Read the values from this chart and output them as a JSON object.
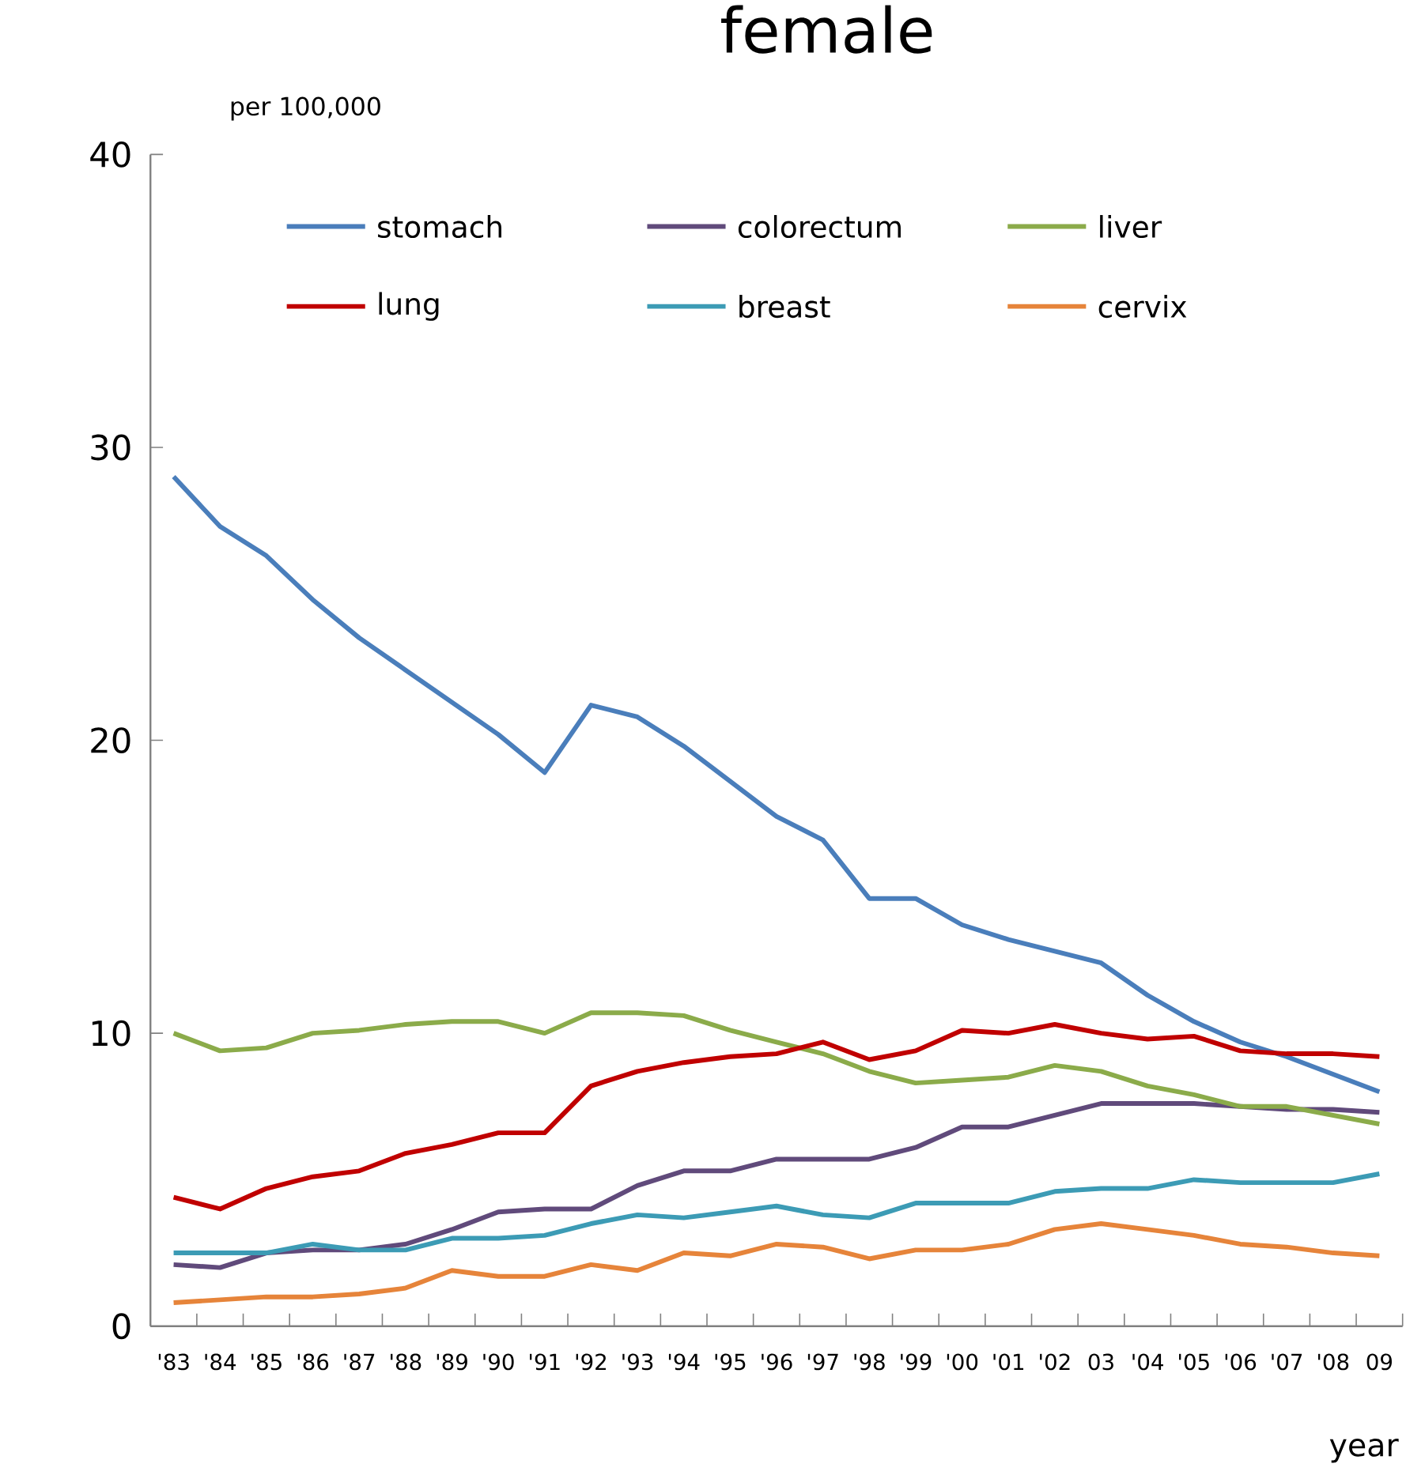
{
  "chart_data": {
    "type": "line",
    "title": "female",
    "ylabel": "per 100,000",
    "xlabel": "year",
    "categories": [
      "'83",
      "'84",
      "'85",
      "'86",
      "'87",
      "'88",
      "'89",
      "'90",
      "'91",
      "'92",
      "'93",
      "'94",
      "'95",
      "'96",
      "'97",
      "'98",
      "'99",
      "'00",
      "'01",
      "'02",
      "03",
      "'04",
      "'05",
      "'06",
      "'07",
      "'08",
      "09"
    ],
    "ylim": [
      0,
      40
    ],
    "yticks": [
      0,
      10,
      20,
      30,
      40
    ],
    "grid": false,
    "legend": "top",
    "marker": "none",
    "line_style": "solid",
    "series": [
      {
        "name": "stomach",
        "color": "#4a7ebb",
        "values": [
          29.0,
          27.3,
          26.3,
          24.8,
          23.5,
          22.4,
          21.3,
          20.2,
          18.9,
          21.2,
          20.8,
          19.8,
          18.6,
          17.4,
          16.6,
          14.6,
          14.6,
          13.7,
          13.2,
          12.8,
          12.4,
          11.3,
          10.4,
          9.7,
          9.2,
          8.6,
          8.0
        ]
      },
      {
        "name": "colorectum",
        "color": "#604a7b",
        "values": [
          2.1,
          2.0,
          2.5,
          2.6,
          2.6,
          2.8,
          3.3,
          3.9,
          4.0,
          4.0,
          4.8,
          5.3,
          5.3,
          5.7,
          5.7,
          5.7,
          6.1,
          6.8,
          6.8,
          7.2,
          7.6,
          7.6,
          7.6,
          7.5,
          7.4,
          7.4,
          7.3
        ]
      },
      {
        "name": "liver",
        "color": "#8bab4a",
        "values": [
          10.0,
          9.4,
          9.5,
          10.0,
          10.1,
          10.3,
          10.4,
          10.4,
          10.0,
          10.7,
          10.7,
          10.6,
          10.1,
          9.7,
          9.3,
          8.7,
          8.3,
          8.4,
          8.5,
          8.9,
          8.7,
          8.2,
          7.9,
          7.5,
          7.5,
          7.2,
          6.9
        ]
      },
      {
        "name": "lung",
        "color": "#c00000",
        "values": [
          4.4,
          4.0,
          4.7,
          5.1,
          5.3,
          5.9,
          6.2,
          6.6,
          6.6,
          8.2,
          8.7,
          9.0,
          9.2,
          9.3,
          9.7,
          9.1,
          9.4,
          10.1,
          10.0,
          10.3,
          10.0,
          9.8,
          9.9,
          9.4,
          9.3,
          9.3,
          9.2
        ]
      },
      {
        "name": "breast",
        "color": "#3c9bb5",
        "values": [
          2.5,
          2.5,
          2.5,
          2.8,
          2.6,
          2.6,
          3.0,
          3.0,
          3.1,
          3.5,
          3.8,
          3.7,
          3.9,
          4.1,
          3.8,
          3.7,
          4.2,
          4.2,
          4.2,
          4.6,
          4.7,
          4.7,
          5.0,
          4.9,
          4.9,
          4.9,
          5.2
        ]
      },
      {
        "name": "cervix",
        "color": "#e6843a",
        "values": [
          0.8,
          0.9,
          1.0,
          1.0,
          1.1,
          1.3,
          1.9,
          1.7,
          1.7,
          2.1,
          1.9,
          2.5,
          2.4,
          2.8,
          2.7,
          2.3,
          2.6,
          2.6,
          2.8,
          3.3,
          3.5,
          3.3,
          3.1,
          2.8,
          2.7,
          2.5,
          2.4
        ]
      }
    ]
  }
}
